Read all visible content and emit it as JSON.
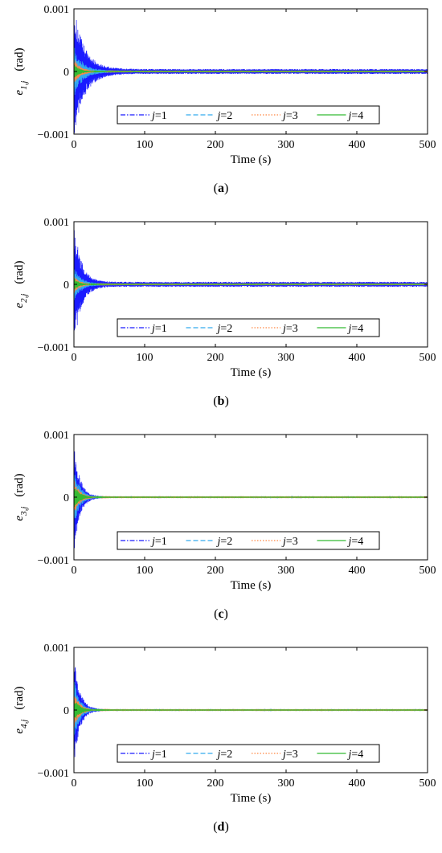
{
  "chart_data": [
    {
      "type": "line",
      "panel": "(a)",
      "ylabel_main": "e",
      "ylabel_sub": "1,j",
      "ylabel_unit": "(rad)",
      "xlabel": "Time (s)",
      "xlim": [
        0,
        500
      ],
      "ylim": [
        -0.001,
        0.001
      ],
      "xticks": [
        0,
        100,
        200,
        300,
        400,
        500
      ],
      "yticks": [
        {
          "v": 0.001,
          "label": "0.001"
        },
        {
          "v": 0,
          "label": "0"
        },
        {
          "v": -0.001,
          "label": "−0.001"
        }
      ],
      "legend_loc": "lower-center",
      "series": [
        {
          "name": "j=1",
          "color": "#1a1aff",
          "amp0": 0.001,
          "tau": 15,
          "floor": 4e-05
        },
        {
          "name": "j=2",
          "color": "#33aaee",
          "amp0": 0.0004,
          "tau": 12,
          "floor": 1.5e-05
        },
        {
          "name": "j=3",
          "color": "#ff8844",
          "amp0": 0.0002,
          "tau": 10,
          "floor": 5e-06
        },
        {
          "name": "j=4",
          "color": "#33bb33",
          "amp0": 0.00012,
          "tau": 8,
          "floor": 3e-06
        }
      ]
    },
    {
      "type": "line",
      "panel": "(b)",
      "ylabel_main": "e",
      "ylabel_sub": "2,j",
      "ylabel_unit": "(rad)",
      "xlabel": "Time (s)",
      "xlim": [
        0,
        500
      ],
      "ylim": [
        -0.001,
        0.001
      ],
      "xticks": [
        0,
        100,
        200,
        300,
        400,
        500
      ],
      "yticks": [
        {
          "v": 0.001,
          "label": "0.001"
        },
        {
          "v": 0,
          "label": "0"
        },
        {
          "v": -0.001,
          "label": "−0.001"
        }
      ],
      "legend_loc": "lower-center",
      "series": [
        {
          "name": "j=1",
          "color": "#1a1aff",
          "amp0": 0.001,
          "tau": 10,
          "floor": 4e-05
        },
        {
          "name": "j=2",
          "color": "#33aaee",
          "amp0": 0.0003,
          "tau": 9,
          "floor": 1.5e-05
        },
        {
          "name": "j=3",
          "color": "#ff8844",
          "amp0": 0.00015,
          "tau": 8,
          "floor": 5e-06
        },
        {
          "name": "j=4",
          "color": "#33bb33",
          "amp0": 0.0001,
          "tau": 7,
          "floor": 3e-06
        }
      ]
    },
    {
      "type": "line",
      "panel": "(c)",
      "ylabel_main": "e",
      "ylabel_sub": "3,j",
      "ylabel_unit": "(rad)",
      "xlabel": "Time (s)",
      "xlim": [
        0,
        500
      ],
      "ylim": [
        -0.001,
        0.001
      ],
      "xticks": [
        0,
        100,
        200,
        300,
        400,
        500
      ],
      "yticks": [
        {
          "v": 0.001,
          "label": "0.001"
        },
        {
          "v": 0,
          "label": "0"
        },
        {
          "v": -0.001,
          "label": "−0.001"
        }
      ],
      "legend_loc": "lower-center",
      "series": [
        {
          "name": "j=1",
          "color": "#1a1aff",
          "amp0": 0.0009,
          "tau": 8,
          "floor": 1e-05
        },
        {
          "name": "j=2",
          "color": "#33aaee",
          "amp0": 0.0005,
          "tau": 8,
          "floor": 8e-06
        },
        {
          "name": "j=3",
          "color": "#ff8844",
          "amp0": 0.0003,
          "tau": 8,
          "floor": 5e-06
        },
        {
          "name": "j=4",
          "color": "#33bb33",
          "amp0": 0.0002,
          "tau": 8,
          "floor": 3e-06
        }
      ]
    },
    {
      "type": "line",
      "panel": "(d)",
      "ylabel_main": "e",
      "ylabel_sub": "4,j",
      "ylabel_unit": "(rad)",
      "xlabel": "Time (s)",
      "xlim": [
        0,
        500
      ],
      "ylim": [
        -0.001,
        0.001
      ],
      "xticks": [
        0,
        100,
        200,
        300,
        400,
        500
      ],
      "yticks": [
        {
          "v": 0.001,
          "label": "0.001"
        },
        {
          "v": 0,
          "label": "0"
        },
        {
          "v": -0.001,
          "label": "−0.001"
        }
      ],
      "legend_loc": "lower-center",
      "series": [
        {
          "name": "j=1",
          "color": "#1a1aff",
          "amp0": 0.0009,
          "tau": 8,
          "floor": 1e-05
        },
        {
          "name": "j=2",
          "color": "#33aaee",
          "amp0": 0.0005,
          "tau": 8,
          "floor": 8e-06
        },
        {
          "name": "j=3",
          "color": "#ff8844",
          "amp0": 0.0003,
          "tau": 8,
          "floor": 5e-06
        },
        {
          "name": "j=4",
          "color": "#33bb33",
          "amp0": 0.0002,
          "tau": 8,
          "floor": 3e-06
        }
      ]
    }
  ]
}
